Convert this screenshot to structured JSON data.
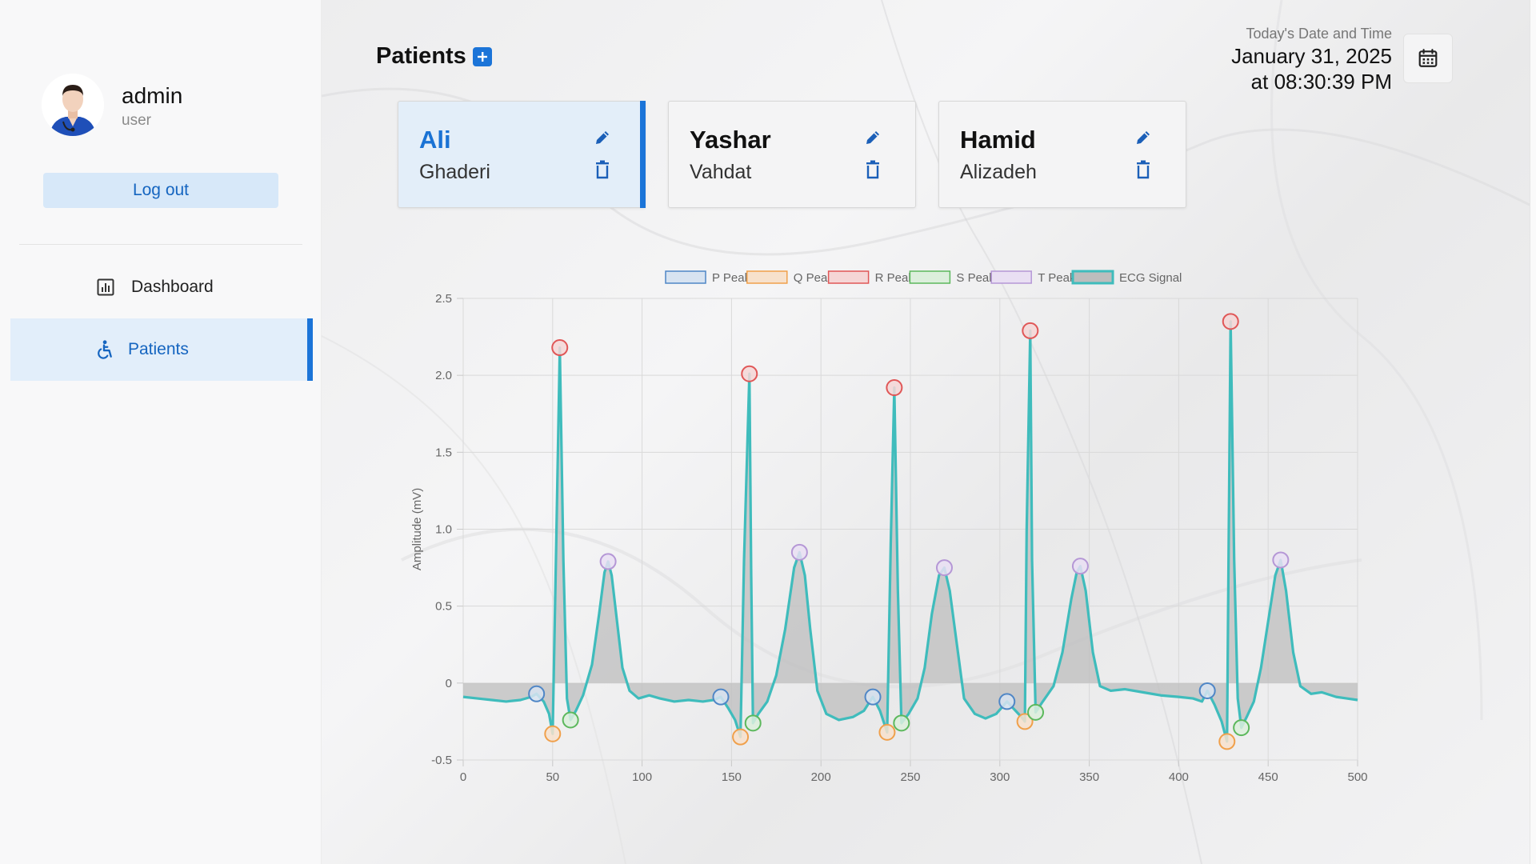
{
  "user": {
    "name": "admin",
    "role": "user"
  },
  "sidebar": {
    "logout_label": "Log out",
    "items": [
      {
        "label": "Dashboard",
        "icon": "bar-chart-icon",
        "active": false
      },
      {
        "label": "Patients",
        "icon": "accessible-icon",
        "active": true
      }
    ]
  },
  "header": {
    "title": "Patients",
    "datetime_label": "Today's Date and Time",
    "date": "January 31, 2025",
    "time": "at 08:30:39 PM"
  },
  "patients": [
    {
      "first": "Ali",
      "last": "Ghaderi",
      "active": true
    },
    {
      "first": "Yashar",
      "last": "Vahdat",
      "active": false
    },
    {
      "first": "Hamid",
      "last": "Alizadeh",
      "active": false
    }
  ],
  "colors": {
    "accent": "#1b74d8",
    "signal": "#3fbcbc"
  },
  "chart_data": {
    "type": "line",
    "ylabel": "Amplitude (mV)",
    "xlabel": "",
    "xlim": [
      0,
      500
    ],
    "ylim": [
      -0.5,
      2.5
    ],
    "xticks": [
      "0",
      "50",
      "100",
      "150",
      "200",
      "250",
      "300",
      "350",
      "400",
      "450",
      "500"
    ],
    "yticks": [
      "-0.5",
      "0",
      "0.5",
      "1.0",
      "1.5",
      "2.0",
      "2.5"
    ],
    "grid": true,
    "legend_position": "top",
    "legend": [
      {
        "name": "P Peak",
        "border": "#4f86c6",
        "fill": "#d7e3f1"
      },
      {
        "name": "Q Peak",
        "border": "#f0a04b",
        "fill": "#f7e1cc"
      },
      {
        "name": "R Peak",
        "border": "#e05757",
        "fill": "#f5d6d6"
      },
      {
        "name": "S Peak",
        "border": "#5cb85c",
        "fill": "#dcefdc"
      },
      {
        "name": "T Peak",
        "border": "#b597d6",
        "fill": "#e9dff3"
      },
      {
        "name": "ECG Signal",
        "border": "#3fbcbc",
        "fill": "#bdbdbd"
      }
    ],
    "series": [
      {
        "name": "P Peak",
        "color": "#4f86c6",
        "points": [
          [
            41,
            -0.07
          ],
          [
            144,
            -0.09
          ],
          [
            229,
            -0.09
          ],
          [
            304,
            -0.12
          ],
          [
            416,
            -0.05
          ]
        ]
      },
      {
        "name": "Q Peak",
        "color": "#f0a04b",
        "points": [
          [
            50,
            -0.33
          ],
          [
            155,
            -0.35
          ],
          [
            237,
            -0.32
          ],
          [
            314,
            -0.25
          ],
          [
            427,
            -0.38
          ]
        ]
      },
      {
        "name": "R Peak",
        "color": "#e05757",
        "points": [
          [
            54,
            2.18
          ],
          [
            160,
            2.01
          ],
          [
            241,
            1.92
          ],
          [
            317,
            2.29
          ],
          [
            429,
            2.35
          ]
        ]
      },
      {
        "name": "S Peak",
        "color": "#5cb85c",
        "points": [
          [
            60,
            -0.24
          ],
          [
            162,
            -0.26
          ],
          [
            245,
            -0.26
          ],
          [
            320,
            -0.19
          ],
          [
            435,
            -0.29
          ]
        ]
      },
      {
        "name": "T Peak",
        "color": "#b597d6",
        "points": [
          [
            81,
            0.79
          ],
          [
            188,
            0.85
          ],
          [
            269,
            0.75
          ],
          [
            345,
            0.76
          ],
          [
            457,
            0.8
          ]
        ]
      },
      {
        "name": "ECG Signal",
        "color": "#3fbcbc",
        "points": [
          [
            0,
            -0.09
          ],
          [
            8,
            -0.1
          ],
          [
            16,
            -0.11
          ],
          [
            24,
            -0.12
          ],
          [
            32,
            -0.11
          ],
          [
            38,
            -0.09
          ],
          [
            41,
            -0.07
          ],
          [
            45,
            -0.12
          ],
          [
            48,
            -0.2
          ],
          [
            50,
            -0.33
          ],
          [
            52,
            0.9
          ],
          [
            54,
            2.18
          ],
          [
            56,
            0.8
          ],
          [
            58,
            -0.1
          ],
          [
            60,
            -0.24
          ],
          [
            63,
            -0.18
          ],
          [
            67,
            -0.08
          ],
          [
            72,
            0.12
          ],
          [
            76,
            0.45
          ],
          [
            79,
            0.72
          ],
          [
            81,
            0.79
          ],
          [
            83,
            0.7
          ],
          [
            86,
            0.4
          ],
          [
            89,
            0.1
          ],
          [
            93,
            -0.05
          ],
          [
            98,
            -0.1
          ],
          [
            104,
            -0.08
          ],
          [
            110,
            -0.1
          ],
          [
            118,
            -0.12
          ],
          [
            126,
            -0.11
          ],
          [
            134,
            -0.12
          ],
          [
            140,
            -0.11
          ],
          [
            144,
            -0.09
          ],
          [
            148,
            -0.16
          ],
          [
            152,
            -0.24
          ],
          [
            155,
            -0.35
          ],
          [
            157,
            0.8
          ],
          [
            160,
            2.01
          ],
          [
            161,
            0.7
          ],
          [
            162,
            -0.26
          ],
          [
            165,
            -0.2
          ],
          [
            170,
            -0.12
          ],
          [
            175,
            0.05
          ],
          [
            180,
            0.35
          ],
          [
            185,
            0.75
          ],
          [
            188,
            0.85
          ],
          [
            191,
            0.7
          ],
          [
            194,
            0.35
          ],
          [
            198,
            -0.05
          ],
          [
            203,
            -0.2
          ],
          [
            210,
            -0.24
          ],
          [
            218,
            -0.22
          ],
          [
            224,
            -0.18
          ],
          [
            229,
            -0.09
          ],
          [
            233,
            -0.18
          ],
          [
            237,
            -0.32
          ],
          [
            239,
            0.9
          ],
          [
            241,
            1.92
          ],
          [
            243,
            0.6
          ],
          [
            245,
            -0.26
          ],
          [
            249,
            -0.2
          ],
          [
            254,
            -0.1
          ],
          [
            258,
            0.1
          ],
          [
            262,
            0.45
          ],
          [
            266,
            0.7
          ],
          [
            269,
            0.75
          ],
          [
            272,
            0.6
          ],
          [
            276,
            0.25
          ],
          [
            280,
            -0.1
          ],
          [
            286,
            -0.2
          ],
          [
            292,
            -0.23
          ],
          [
            298,
            -0.2
          ],
          [
            304,
            -0.12
          ],
          [
            308,
            -0.17
          ],
          [
            312,
            -0.22
          ],
          [
            314,
            -0.25
          ],
          [
            315,
            1.0
          ],
          [
            317,
            2.29
          ],
          [
            318,
            0.8
          ],
          [
            320,
            -0.19
          ],
          [
            324,
            -0.12
          ],
          [
            330,
            -0.02
          ],
          [
            335,
            0.2
          ],
          [
            340,
            0.55
          ],
          [
            343,
            0.72
          ],
          [
            345,
            0.76
          ],
          [
            348,
            0.6
          ],
          [
            352,
            0.2
          ],
          [
            356,
            -0.02
          ],
          [
            362,
            -0.05
          ],
          [
            370,
            -0.04
          ],
          [
            380,
            -0.06
          ],
          [
            390,
            -0.08
          ],
          [
            400,
            -0.09
          ],
          [
            408,
            -0.1
          ],
          [
            413,
            -0.12
          ],
          [
            416,
            -0.05
          ],
          [
            420,
            -0.14
          ],
          [
            424,
            -0.25
          ],
          [
            427,
            -0.38
          ],
          [
            428,
            1.0
          ],
          [
            429,
            2.35
          ],
          [
            431,
            0.8
          ],
          [
            433,
            -0.1
          ],
          [
            435,
            -0.29
          ],
          [
            438,
            -0.22
          ],
          [
            442,
            -0.12
          ],
          [
            446,
            0.1
          ],
          [
            450,
            0.4
          ],
          [
            454,
            0.7
          ],
          [
            457,
            0.8
          ],
          [
            460,
            0.6
          ],
          [
            464,
            0.2
          ],
          [
            468,
            -0.02
          ],
          [
            474,
            -0.07
          ],
          [
            480,
            -0.06
          ],
          [
            488,
            -0.09
          ],
          [
            494,
            -0.1
          ],
          [
            500,
            -0.11
          ]
        ]
      }
    ]
  }
}
